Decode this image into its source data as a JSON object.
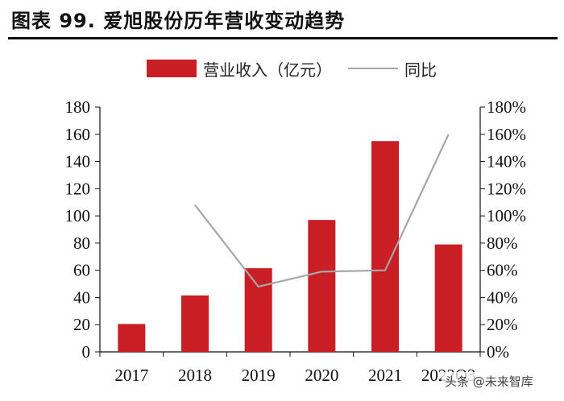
{
  "header": {
    "title": "图表 99. 爱旭股份历年营收变动趋势"
  },
  "watermark": "头条 @未来智库",
  "colors": {
    "bar": "#c81e24",
    "line": "#a6a6a6",
    "axis": "#111111"
  },
  "chart_data": {
    "type": "bar",
    "title": "",
    "categories": [
      "2017",
      "2018",
      "2019",
      "2020",
      "2021",
      "2022Q3"
    ],
    "series": [
      {
        "name": "营业收入（亿元）",
        "type": "bar",
        "axis": "left",
        "values": [
          20.5,
          41.5,
          61.5,
          97,
          155,
          79
        ]
      },
      {
        "name": "同比",
        "type": "line",
        "axis": "right",
        "values": [
          null,
          1.08,
          0.48,
          0.59,
          0.6,
          1.6
        ]
      }
    ],
    "y_left": {
      "ylim": [
        0,
        180
      ],
      "ticks": [
        "0",
        "20",
        "40",
        "60",
        "80",
        "100",
        "120",
        "140",
        "160",
        "180"
      ]
    },
    "y_right": {
      "ylim": [
        0,
        1.8
      ],
      "ticks": [
        "0%",
        "20%",
        "40%",
        "60%",
        "80%",
        "100%",
        "120%",
        "140%",
        "160%",
        "180%"
      ]
    },
    "grid": false,
    "legend": "top-center"
  }
}
